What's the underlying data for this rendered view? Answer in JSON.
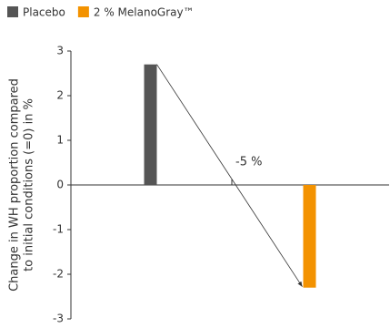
{
  "chart_data": {
    "type": "bar",
    "ylabel": [
      "Change in WH proportion compared",
      "to initial conditions (=0) in %"
    ],
    "categories": [
      null,
      null
    ],
    "series": [
      {
        "name": "Placebo",
        "color": "#555555",
        "values": [
          2.7,
          null
        ]
      },
      {
        "name": "2 % MelanoGray™",
        "color": "#f39200",
        "values": [
          null,
          -2.3
        ]
      }
    ],
    "annotation": "-5 %",
    "ylim": [
      -3,
      3
    ],
    "yticks": [
      3,
      2,
      1,
      0,
      -1,
      -2,
      -3
    ],
    "grid": false
  }
}
